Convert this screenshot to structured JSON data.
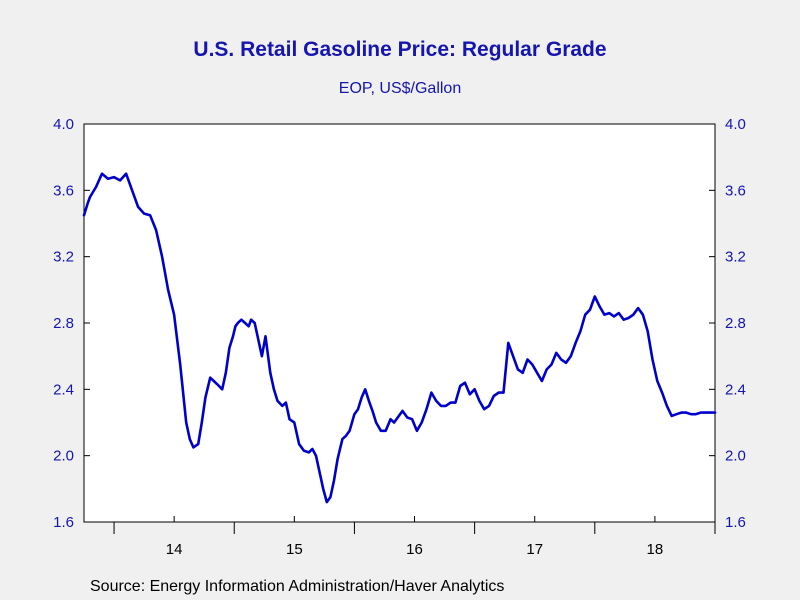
{
  "chart_data": {
    "type": "line",
    "title": "U.S. Retail Gasoline Price: Regular Grade",
    "subtitle": "EOP, US$/Gallon",
    "source": "Source:  Energy Information Administration/Haver Analytics",
    "ylim": [
      1.6,
      4.0
    ],
    "yticks": [
      "1.6",
      "2.0",
      "2.4",
      "2.8",
      "3.2",
      "3.6",
      "4.0"
    ],
    "y_axis_both_sides": true,
    "grid": false,
    "xlim": [
      2013.75,
      2019.0
    ],
    "xtick_labels": [
      {
        "label": "14",
        "year": 2014
      },
      {
        "label": "15",
        "year": 2015
      },
      {
        "label": "16",
        "year": 2016
      },
      {
        "label": "17",
        "year": 2017
      },
      {
        "label": "18",
        "year": 2018
      }
    ],
    "line_color": "#0000cc",
    "series": [
      {
        "x": [
          2013.75,
          2013.78,
          2013.8,
          2013.85,
          2013.9,
          2013.95,
          2014.0,
          2014.05,
          2014.1,
          2014.15,
          2014.2,
          2014.25,
          2014.3,
          2014.35,
          2014.4,
          2014.45,
          2014.5,
          2014.55,
          2014.6,
          2014.63,
          2014.66,
          2014.7,
          2014.73,
          2014.76,
          2014.8,
          2014.83,
          2014.86,
          2014.9,
          2014.93,
          2014.96,
          2014.99,
          2015.01,
          2015.03,
          2015.06,
          2015.09,
          2015.12,
          2015.14,
          2015.17,
          2015.2,
          2015.23,
          2015.26,
          2015.3,
          2015.33,
          2015.36,
          2015.4,
          2015.43,
          2015.46,
          2015.5,
          2015.54,
          2015.58,
          2015.62,
          2015.65,
          2015.68,
          2015.71,
          2015.74,
          2015.77,
          2015.8,
          2015.83,
          2015.86,
          2015.9,
          2015.93,
          2015.96,
          2015.98,
          2016.0,
          2016.03,
          2016.06,
          2016.09,
          2016.12,
          2016.15,
          2016.18,
          2016.22,
          2016.26,
          2016.3,
          2016.33,
          2016.36,
          2016.4,
          2016.44,
          2016.48,
          2016.52,
          2016.56,
          2016.6,
          2016.64,
          2016.68,
          2016.72,
          2016.76,
          2016.8,
          2016.84,
          2016.88,
          2016.92,
          2016.96,
          2017.0,
          2017.04,
          2017.08,
          2017.12,
          2017.16,
          2017.2,
          2017.24,
          2017.28,
          2017.32,
          2017.36,
          2017.4,
          2017.44,
          2017.48,
          2017.52,
          2017.56,
          2017.6,
          2017.64,
          2017.68,
          2017.72,
          2017.76,
          2017.8,
          2017.84,
          2017.88,
          2017.92,
          2017.96,
          2018.0,
          2018.04,
          2018.08,
          2018.12,
          2018.16,
          2018.2,
          2018.24,
          2018.28,
          2018.32,
          2018.36,
          2018.4,
          2018.44,
          2018.48,
          2018.52,
          2018.56,
          2018.6,
          2018.64,
          2018.68,
          2018.72,
          2018.76,
          2018.8,
          2018.84,
          2018.88,
          2018.92,
          2018.96,
          2019.0
        ],
        "y": [
          3.45,
          3.52,
          3.56,
          3.62,
          3.7,
          3.67,
          3.68,
          3.66,
          3.7,
          3.6,
          3.5,
          3.46,
          3.45,
          3.36,
          3.2,
          3.0,
          2.85,
          2.55,
          2.2,
          2.1,
          2.05,
          2.07,
          2.2,
          2.35,
          2.47,
          2.45,
          2.43,
          2.4,
          2.5,
          2.65,
          2.72,
          2.78,
          2.8,
          2.82,
          2.8,
          2.78,
          2.82,
          2.8,
          2.7,
          2.6,
          2.72,
          2.5,
          2.4,
          2.33,
          2.3,
          2.32,
          2.22,
          2.2,
          2.07,
          2.03,
          2.02,
          2.04,
          2.0,
          1.9,
          1.8,
          1.72,
          1.75,
          1.85,
          1.98,
          2.1,
          2.12,
          2.15,
          2.2,
          2.25,
          2.28,
          2.35,
          2.4,
          2.33,
          2.27,
          2.2,
          2.15,
          2.15,
          2.22,
          2.2,
          2.23,
          2.27,
          2.23,
          2.22,
          2.15,
          2.2,
          2.28,
          2.38,
          2.33,
          2.3,
          2.3,
          2.32,
          2.32,
          2.42,
          2.44,
          2.37,
          2.4,
          2.33,
          2.28,
          2.3,
          2.36,
          2.38,
          2.38,
          2.68,
          2.6,
          2.52,
          2.5,
          2.58,
          2.55,
          2.5,
          2.45,
          2.52,
          2.55,
          2.62,
          2.58,
          2.56,
          2.6,
          2.68,
          2.75,
          2.85,
          2.88,
          2.96,
          2.9,
          2.85,
          2.86,
          2.84,
          2.86,
          2.82,
          2.83,
          2.85,
          2.89,
          2.85,
          2.75,
          2.58,
          2.45,
          2.38,
          2.3,
          2.24,
          2.25,
          2.26,
          2.26,
          2.25,
          2.25,
          2.26,
          2.26,
          2.26,
          2.26
        ]
      }
    ]
  }
}
